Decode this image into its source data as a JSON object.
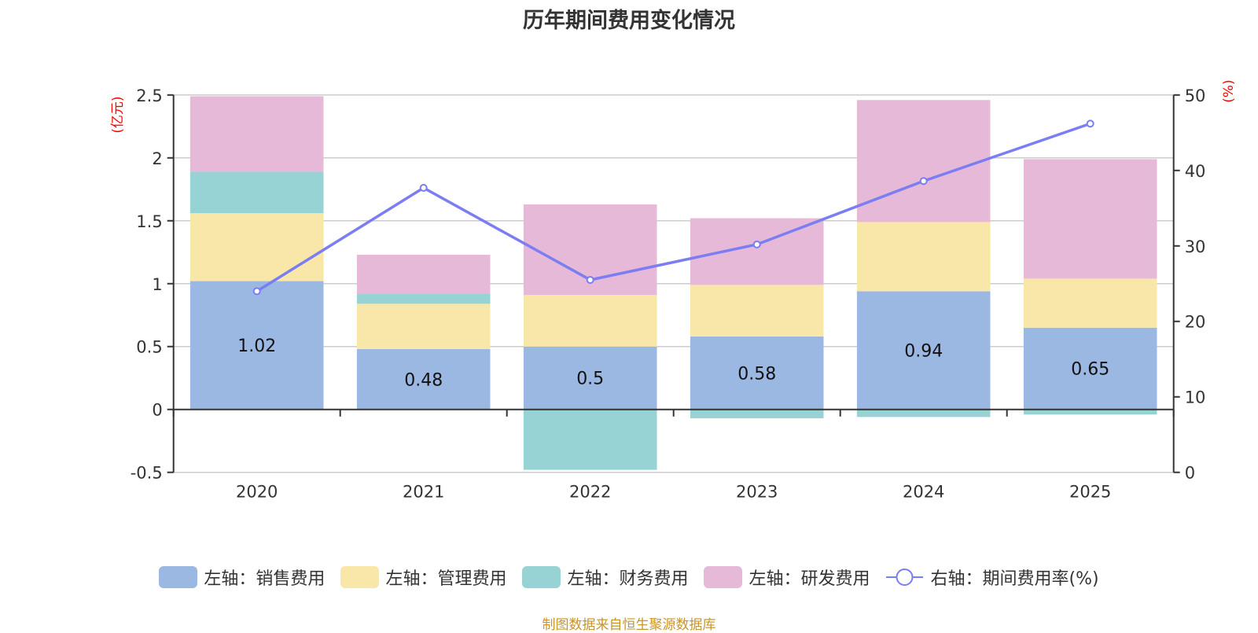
{
  "title": "历年期间费用变化情况",
  "source": "制图数据来自恒生聚源数据库",
  "colors": {
    "sales": "#9bb8e2",
    "admin": "#f8e7a9",
    "finance": "#97d3d4",
    "rd": "#e7b9d8",
    "line": "#7b7ef2",
    "unit": "#ff0000",
    "source": "#c8952a"
  },
  "legend": [
    {
      "key": "sales",
      "label": "左轴：销售费用",
      "kind": "box"
    },
    {
      "key": "admin",
      "label": "左轴：管理费用",
      "kind": "box"
    },
    {
      "key": "finance",
      "label": "左轴：财务费用",
      "kind": "box"
    },
    {
      "key": "rd",
      "label": "左轴：研发费用",
      "kind": "box"
    },
    {
      "key": "line",
      "label": "右轴：期间费用率(%)",
      "kind": "line"
    }
  ],
  "chart_data": {
    "type": "bar",
    "stacked": true,
    "title": "历年期间费用变化情况",
    "categories": [
      "2020",
      "2021",
      "2022",
      "2023",
      "2024",
      "2025"
    ],
    "series": [
      {
        "name": "左轴：销售费用",
        "key": "sales",
        "axis": "left",
        "type": "bar",
        "values": [
          1.02,
          0.48,
          0.5,
          0.58,
          0.94,
          0.65
        ],
        "labels_shown": true
      },
      {
        "name": "左轴：管理费用",
        "key": "admin",
        "axis": "left",
        "type": "bar",
        "values": [
          0.54,
          0.36,
          0.41,
          0.41,
          0.55,
          0.39
        ]
      },
      {
        "name": "左轴：财务费用",
        "key": "finance",
        "axis": "left",
        "type": "bar",
        "values": [
          0.33,
          0.08,
          -0.48,
          -0.07,
          -0.06,
          -0.04
        ]
      },
      {
        "name": "左轴：研发费用",
        "key": "rd",
        "axis": "left",
        "type": "bar",
        "values": [
          0.6,
          0.31,
          0.72,
          0.53,
          0.97,
          0.95
        ]
      },
      {
        "name": "右轴：期间费用率(%)",
        "key": "line",
        "axis": "right",
        "type": "line",
        "values": [
          24.0,
          37.7,
          25.5,
          30.2,
          38.6,
          46.2
        ]
      }
    ],
    "left_axis": {
      "label": "(亿元)",
      "min": -0.5,
      "max": 2.5,
      "ticks": [
        -0.5,
        0,
        0.5,
        1,
        1.5,
        2,
        2.5
      ],
      "tick_labels": [
        "-0.5",
        "0",
        "0.5",
        "1",
        "1.5",
        "2",
        "2.5"
      ]
    },
    "right_axis": {
      "label": "(%)",
      "min": 0,
      "max": 50,
      "ticks": [
        0,
        10,
        20,
        30,
        40,
        50
      ],
      "tick_labels": [
        "0",
        "10",
        "20",
        "30",
        "40",
        "50"
      ]
    },
    "grid": true,
    "legend_position": "bottom"
  }
}
